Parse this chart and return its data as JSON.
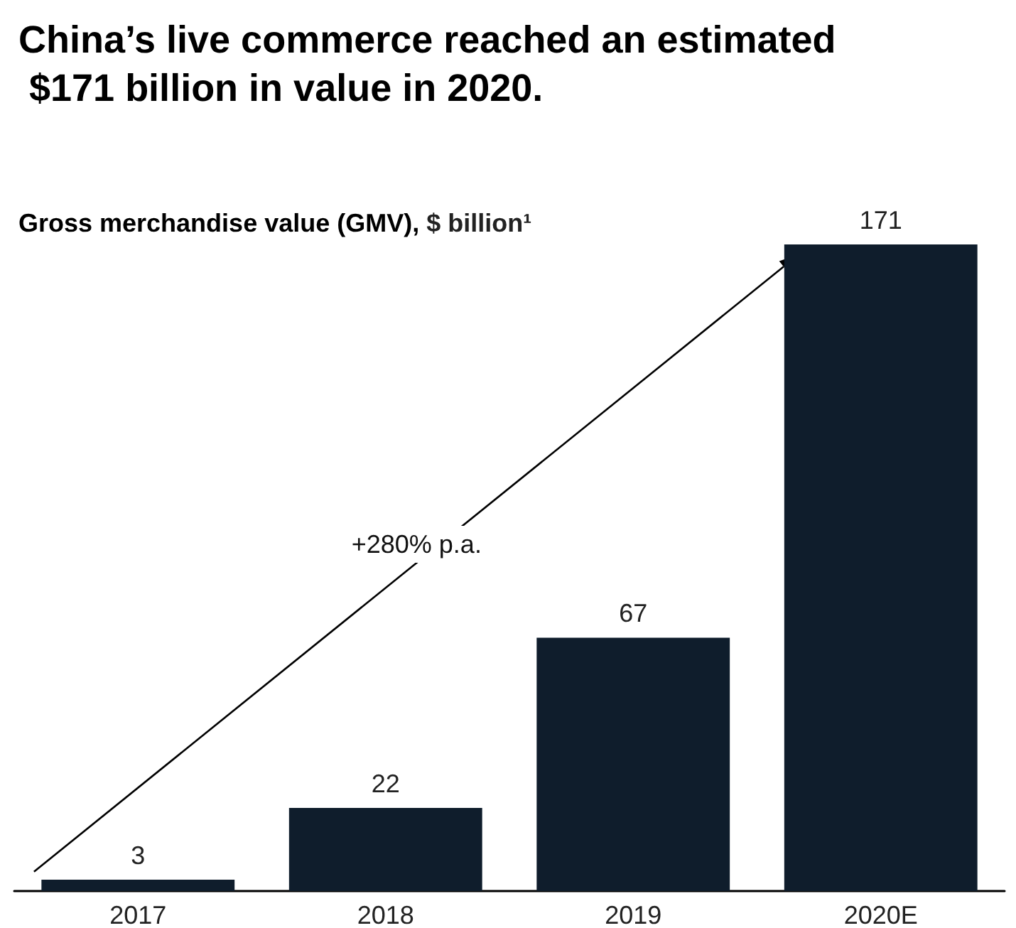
{
  "chart_data": {
    "type": "bar",
    "title": "China’s live commerce reached an estimated $171 billion in value in 2020.",
    "subtitle": "Gross merchandise value (GMV), $ billion¹",
    "categories": [
      "2017",
      "2018",
      "2019",
      "2020E"
    ],
    "values": [
      3,
      22,
      67,
      171
    ],
    "color": "#0f1d2c",
    "data_labels": true,
    "annotations": [
      "+280% p.a."
    ]
  }
}
